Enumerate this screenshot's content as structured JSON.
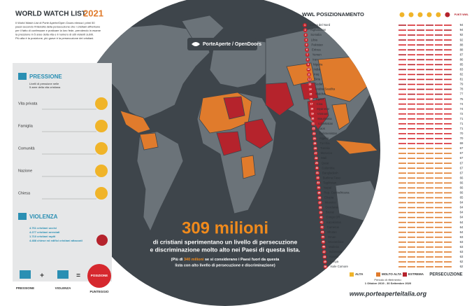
{
  "header": {
    "title": "WORLD WATCH LIST",
    "year": "2021",
    "intro": [
      "Il World Watch List di Porte Aperte/Open Doors elenca i primi 50",
      "paesi secondo l'intensità della persecuzione che i cristiani affrontano",
      "per il fatto di confessare e praticare la loro fede, prendendo in esame",
      "la pressione in 5 aree della vita e il numero di atti violenti subiti.",
      "Più alta è la posizione, più grave è la persecuzione dei cristiani."
    ]
  },
  "pressure": {
    "title": "PRESSIONE",
    "description": [
      "Livelli di pressione nelle",
      "5 aree della vita cristiana"
    ],
    "areas": [
      "Vita privata",
      "Famiglia",
      "Comunità",
      "Nazione",
      "Chiesa"
    ]
  },
  "violence": {
    "title": "VIOLENZA",
    "stats": [
      "4.761 cristiani uccisi",
      "4.277 cristiani arrestati",
      "1.710 cristiani rapiti",
      "4.488 chiese ed edifici cristiani attaccati"
    ]
  },
  "formula": {
    "pressure": "PRESSIONE",
    "violence": "VIOLENZA",
    "position": "POSIZIONE",
    "score": "PUNTEGGIO"
  },
  "logo": {
    "name": "PorteAperte / OpenDoors"
  },
  "headline": {
    "number": "309 milioni",
    "text": [
      "di cristiani sperimentano un livello di persecuzione",
      "e discriminazione molto alto nei Paesi di questa lista."
    ],
    "note_before": "(Più di",
    "note_highlight": "340 milioni",
    "note_after": "se si considerano i Paesi fuori da questa",
    "note_line2": "lista con alto livello di persecuzione e discriminazione)"
  },
  "ranking": {
    "title": "WWL POSIZIONAMENTO",
    "score_header": "PUNTI WWL",
    "rows": [
      [
        1,
        "Corea del Nord",
        94
      ],
      [
        2,
        "Afghanistan",
        94
      ],
      [
        3,
        "Somalia",
        92
      ],
      [
        4,
        "Libia",
        92
      ],
      [
        5,
        "Pakistan",
        88
      ],
      [
        6,
        "Eritrea",
        88
      ],
      [
        7,
        "Yemen",
        87
      ],
      [
        8,
        "Iran",
        86
      ],
      [
        9,
        "Nigeria",
        85
      ],
      [
        10,
        "India",
        83
      ],
      [
        11,
        "Iraq",
        82
      ],
      [
        12,
        "Siria",
        81
      ],
      [
        13,
        "Sudan",
        79
      ],
      [
        14,
        "Arabia Saudita",
        78
      ],
      [
        15,
        "Maldive",
        77
      ],
      [
        16,
        "Egitto",
        75
      ],
      [
        17,
        "Cina",
        74
      ],
      [
        18,
        "Myanmar",
        74
      ],
      [
        19,
        "Vietnam",
        72
      ],
      [
        20,
        "Mauritania",
        71
      ],
      [
        21,
        "Uzbekistan",
        71
      ],
      [
        22,
        "Laos",
        71
      ],
      [
        23,
        "Turkmenistan",
        70
      ],
      [
        24,
        "Algeria",
        70
      ],
      [
        25,
        "Turchia",
        69
      ],
      [
        26,
        "Tunisia",
        67
      ],
      [
        27,
        "Marocco",
        67
      ],
      [
        28,
        "Mali",
        67
      ],
      [
        29,
        "Qatar",
        67
      ],
      [
        30,
        "Colombia",
        67
      ],
      [
        31,
        "Bangladesh",
        67
      ],
      [
        32,
        "Burkina Faso",
        66
      ],
      [
        33,
        "Tagikistan",
        66
      ],
      [
        34,
        "Nepal",
        66
      ],
      [
        35,
        "Rep. Centrafricana",
        66
      ],
      [
        36,
        "Etiopia",
        65
      ],
      [
        37,
        "Messico",
        64
      ],
      [
        38,
        "Giordania",
        64
      ],
      [
        39,
        "Brunei",
        64
      ],
      [
        40,
        "Congo DR",
        64
      ],
      [
        41,
        "Kazakistan",
        64
      ],
      [
        42,
        "Camerun",
        64
      ],
      [
        43,
        "Bhutan",
        64
      ],
      [
        44,
        "Oman",
        63
      ],
      [
        45,
        "Mozambico",
        63
      ],
      [
        46,
        "Malesia",
        63
      ],
      [
        47,
        "Indonesia",
        63
      ],
      [
        48,
        "Kuwait",
        63
      ],
      [
        49,
        "Kenya",
        62
      ],
      [
        50,
        "Isole Comore",
        62
      ]
    ]
  },
  "legend": {
    "levels": [
      "ALTA",
      "MOLTO ALTA",
      "ESTREMA"
    ],
    "label": "PERSECUZIONE",
    "period": [
      "Periodo di riferimento:",
      "1 Ottobre 2019 - 30 Settembre 2020"
    ]
  },
  "footer": {
    "url": "www.porteaperteitalia.org"
  }
}
